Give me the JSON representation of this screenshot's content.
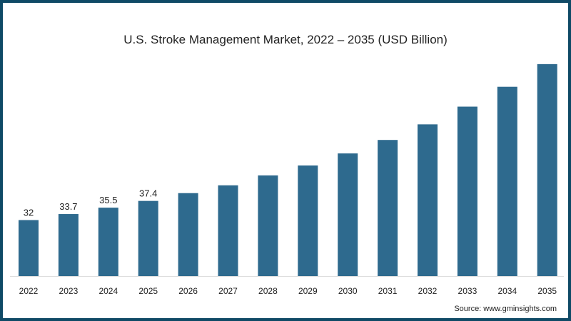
{
  "chart_data": {
    "type": "bar",
    "title": "U.S. Stroke Management Market, 2022 – 2035 (USD Billion)",
    "categories": [
      "2022",
      "2023",
      "2024",
      "2025",
      "2026",
      "2027",
      "2028",
      "2029",
      "2030",
      "2031",
      "2032",
      "2033",
      "2034",
      "2035"
    ],
    "values": [
      32,
      33.7,
      35.5,
      37.4,
      39.6,
      41.8,
      44.6,
      47.4,
      50.8,
      54.6,
      59.0,
      64.0,
      69.6,
      76.0
    ],
    "data_labels": [
      "32",
      "33.7",
      "35.5",
      "37.4",
      "",
      "",
      "",
      "",
      "",
      "",
      "",
      "",
      "",
      ""
    ],
    "xlabel": "",
    "ylabel": "",
    "ylim": [
      16.2,
      80
    ],
    "grid": false,
    "bar_color": "#2e6a8e",
    "source": "Source: www.gminsights.com"
  }
}
